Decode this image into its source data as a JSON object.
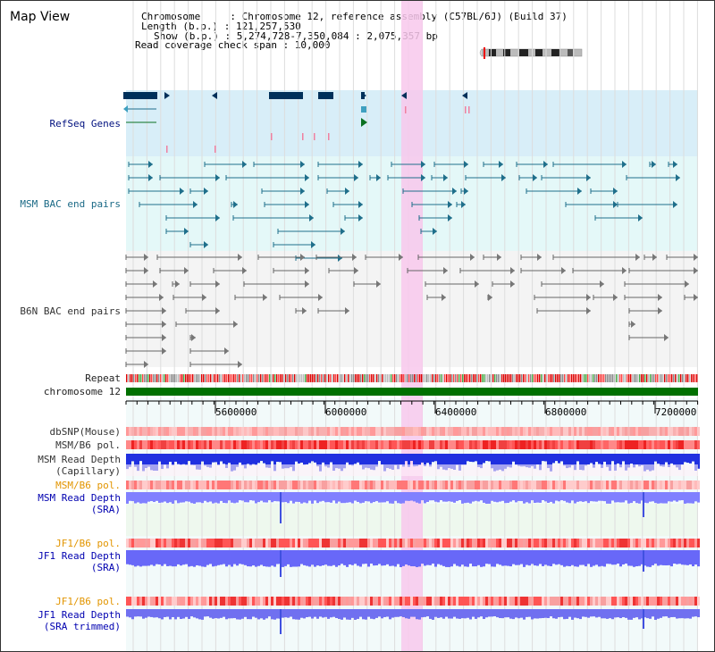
{
  "page": {
    "title": "Map View"
  },
  "header": {
    "chromosome_label": "Chromosome     : Chromosome 12, reference assembly (C57BL/6J) (Build 37)",
    "length_label": "Length (b.p.) : 121,257,530",
    "show_label": "Show (b.p.) : 5,274,728-7,350,084 : 2,075,357 bp",
    "coverage_label": "Read coverage check span : 10,000"
  },
  "tracks": {
    "refseq": "RefSeq Genes",
    "msm_bac": "MSM BAC end pairs",
    "b6n_bac": "B6N BAC end pairs",
    "repeat": "Repeat",
    "chromosome": "chromosome 12",
    "dbsnp": "dbSNP(Mouse)",
    "msm_b6_pol_1": "MSM/B6 pol.",
    "msm_read_depth_cap_1": "MSM Read Depth",
    "msm_read_depth_cap_2": "(Capillary)",
    "msm_b6_pol_2": "MSM/B6 pol.",
    "msm_read_depth_sra_1": "MSM Read Depth",
    "msm_read_depth_sra_2": "(SRA)",
    "jf1_b6_pol_1": "JF1/B6 pol.",
    "jf1_read_depth_sra_1": "JF1 Read Depth",
    "jf1_read_depth_sra_2": "(SRA)",
    "jf1_b6_pol_2": "JF1/B6 pol.",
    "jf1_read_depth_trim_1": "JF1 Read Depth",
    "jf1_read_depth_trim_2": "(SRA trimmed)"
  },
  "axis": {
    "ticks": [
      "5600000",
      "6000000",
      "6400000",
      "6800000",
      "7200000"
    ]
  },
  "colors": {
    "highlight": "#f8c8ec",
    "refseq_bg": "#d8eef8",
    "msm_bg": "#e4f8f8",
    "b6n_bg": "#f4f4f4",
    "gene": "#00305a",
    "msm_pair": "#1f6f8b",
    "b6n_pair": "#666666",
    "chrom_bar": "#007000",
    "read_depth_cap": "#2030e0",
    "read_depth_sra": "#8080ff"
  }
}
